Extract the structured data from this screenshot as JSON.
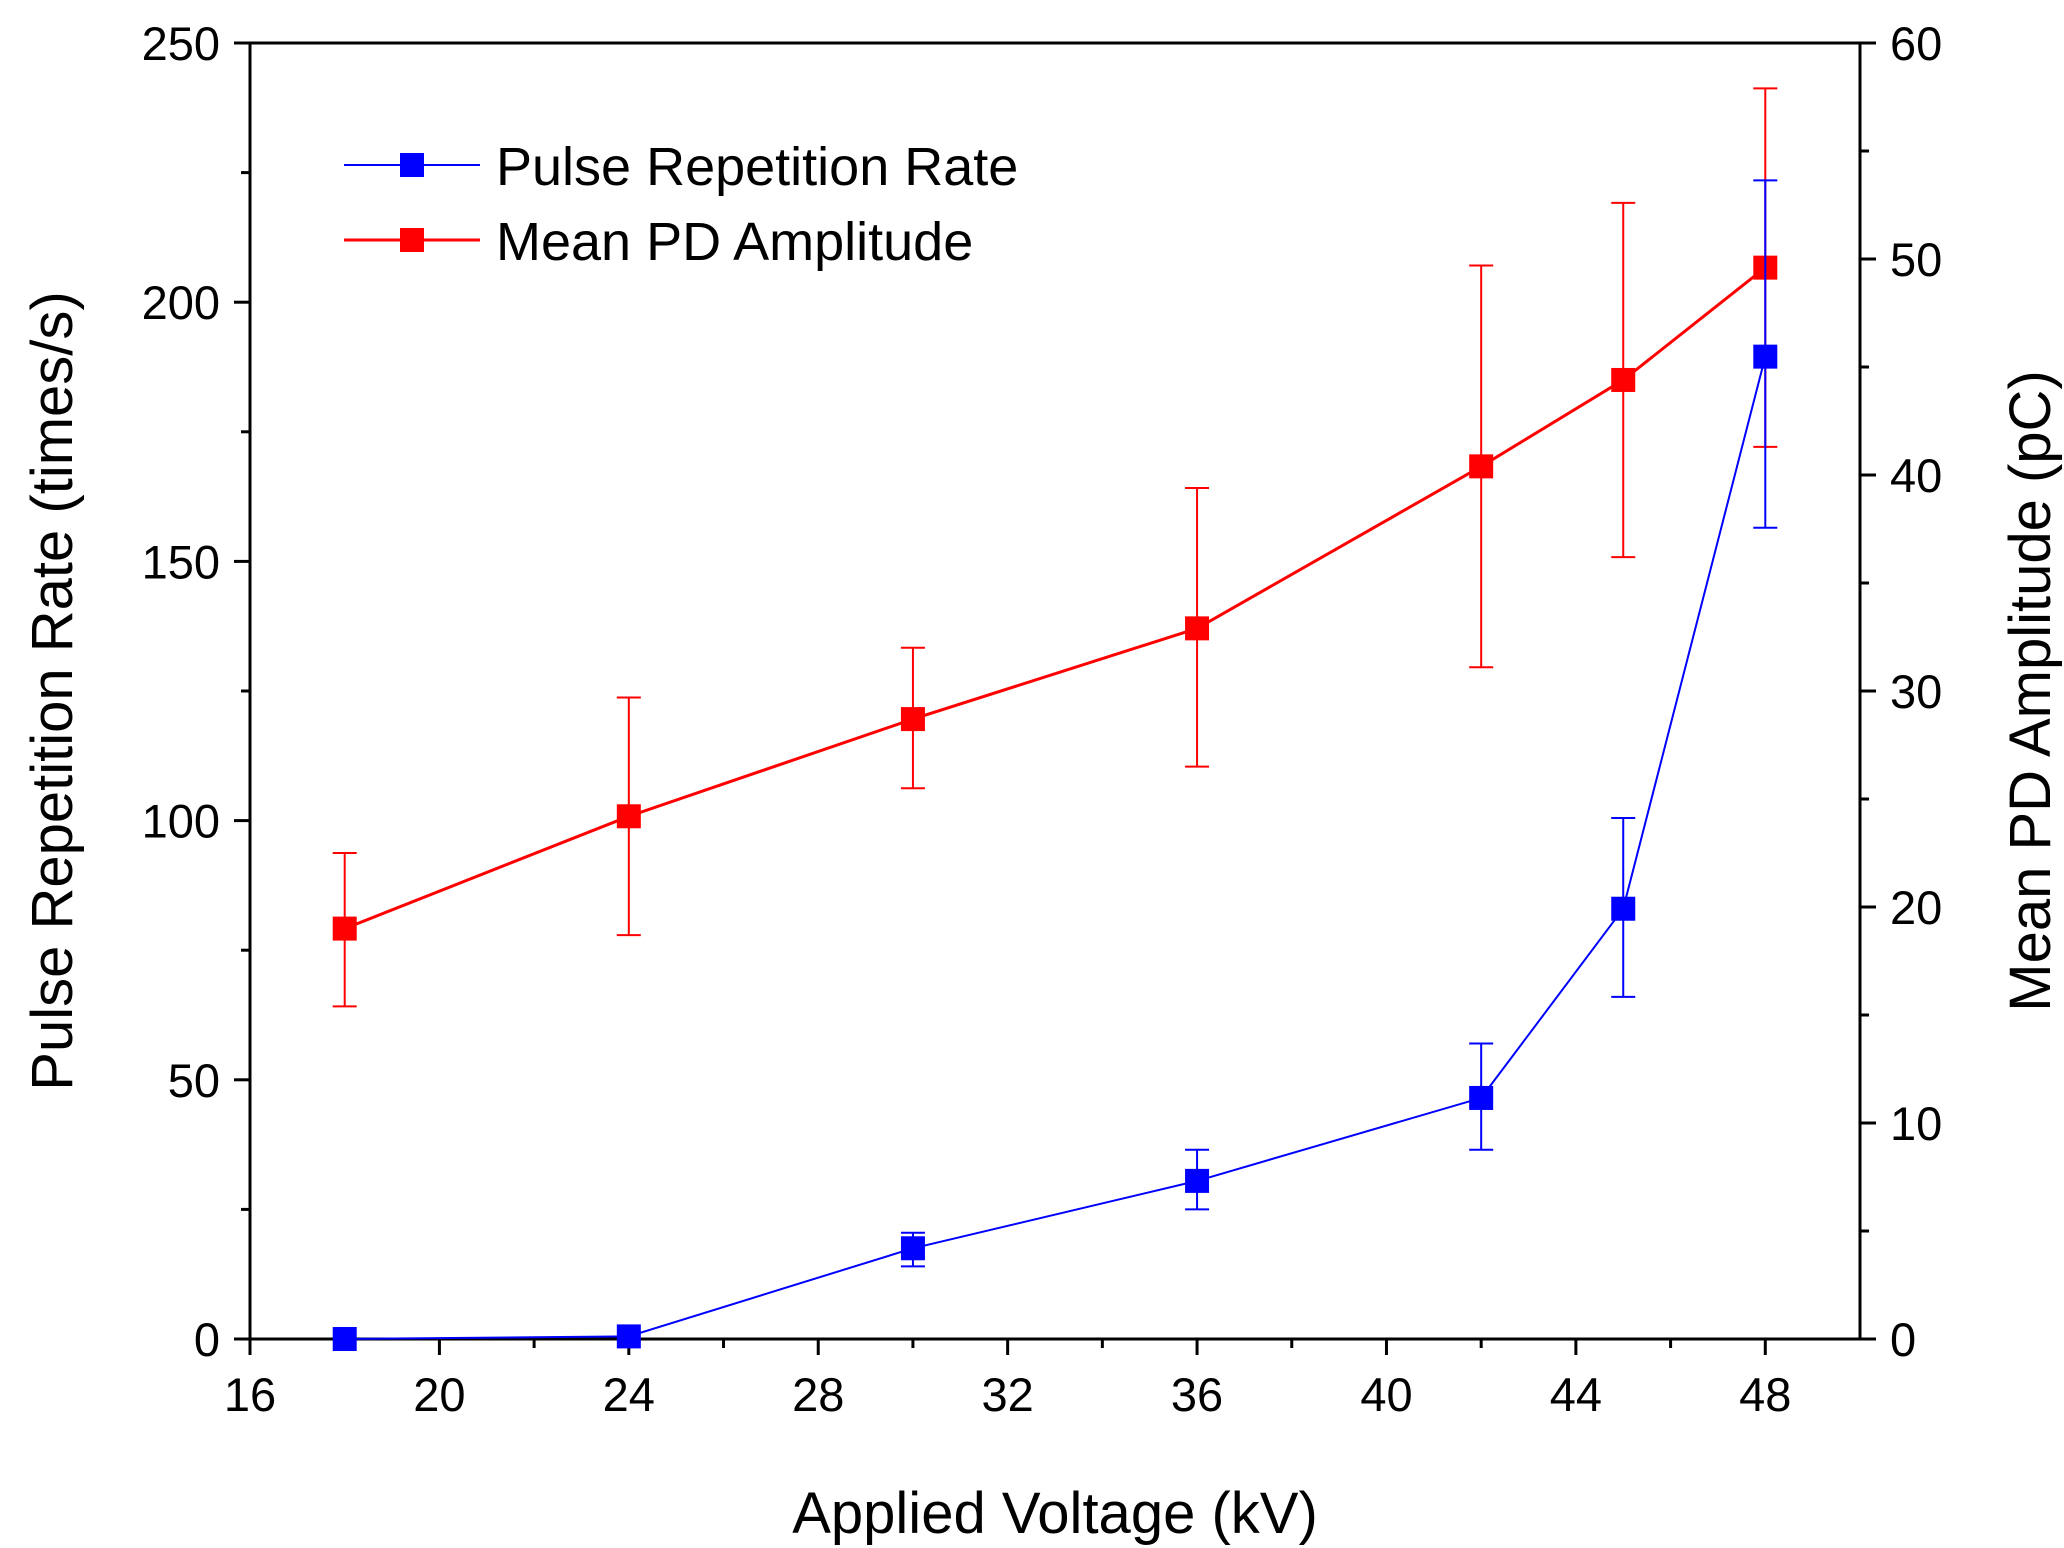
{
  "chart_data": {
    "type": "line",
    "xlabel": "Applied Voltage (kV)",
    "ylabel": "Pulse Repetition Rate (times/s)",
    "y2label": "Mean PD Amplitude (pC)",
    "xlim": [
      16,
      50
    ],
    "ylim": [
      0,
      250
    ],
    "y2lim": [
      0,
      60
    ],
    "x_ticks": [
      16,
      20,
      24,
      28,
      32,
      36,
      40,
      44,
      48
    ],
    "y_ticks": [
      0,
      50,
      100,
      150,
      200,
      250
    ],
    "y2_ticks": [
      0,
      10,
      20,
      30,
      40,
      50,
      60
    ],
    "legend_position": "top-left",
    "series": [
      {
        "name": "Pulse Repetition Rate",
        "axis": "left",
        "color": "#0000ff",
        "x": [
          18,
          24,
          30,
          36,
          42,
          45,
          48
        ],
        "values": [
          0,
          0.5,
          17.5,
          30.5,
          46.5,
          83,
          189.5
        ],
        "err_low": [
          0,
          0,
          3.5,
          5.5,
          10,
          17,
          33
        ],
        "err_high": [
          0,
          0,
          3,
          6,
          10.5,
          17.5,
          34
        ]
      },
      {
        "name": "Mean PD Amplitude",
        "axis": "right",
        "color": "#ff0000",
        "x": [
          18,
          24,
          30,
          36,
          42,
          45,
          48
        ],
        "values": [
          19,
          24.2,
          28.7,
          32.9,
          40.4,
          44.4,
          49.6
        ],
        "err_low": [
          3.6,
          5.5,
          3.2,
          6.4,
          9.3,
          8.2,
          8.3
        ],
        "err_high": [
          3.5,
          5.5,
          3.3,
          6.5,
          9.3,
          8.2,
          8.3
        ]
      }
    ]
  }
}
